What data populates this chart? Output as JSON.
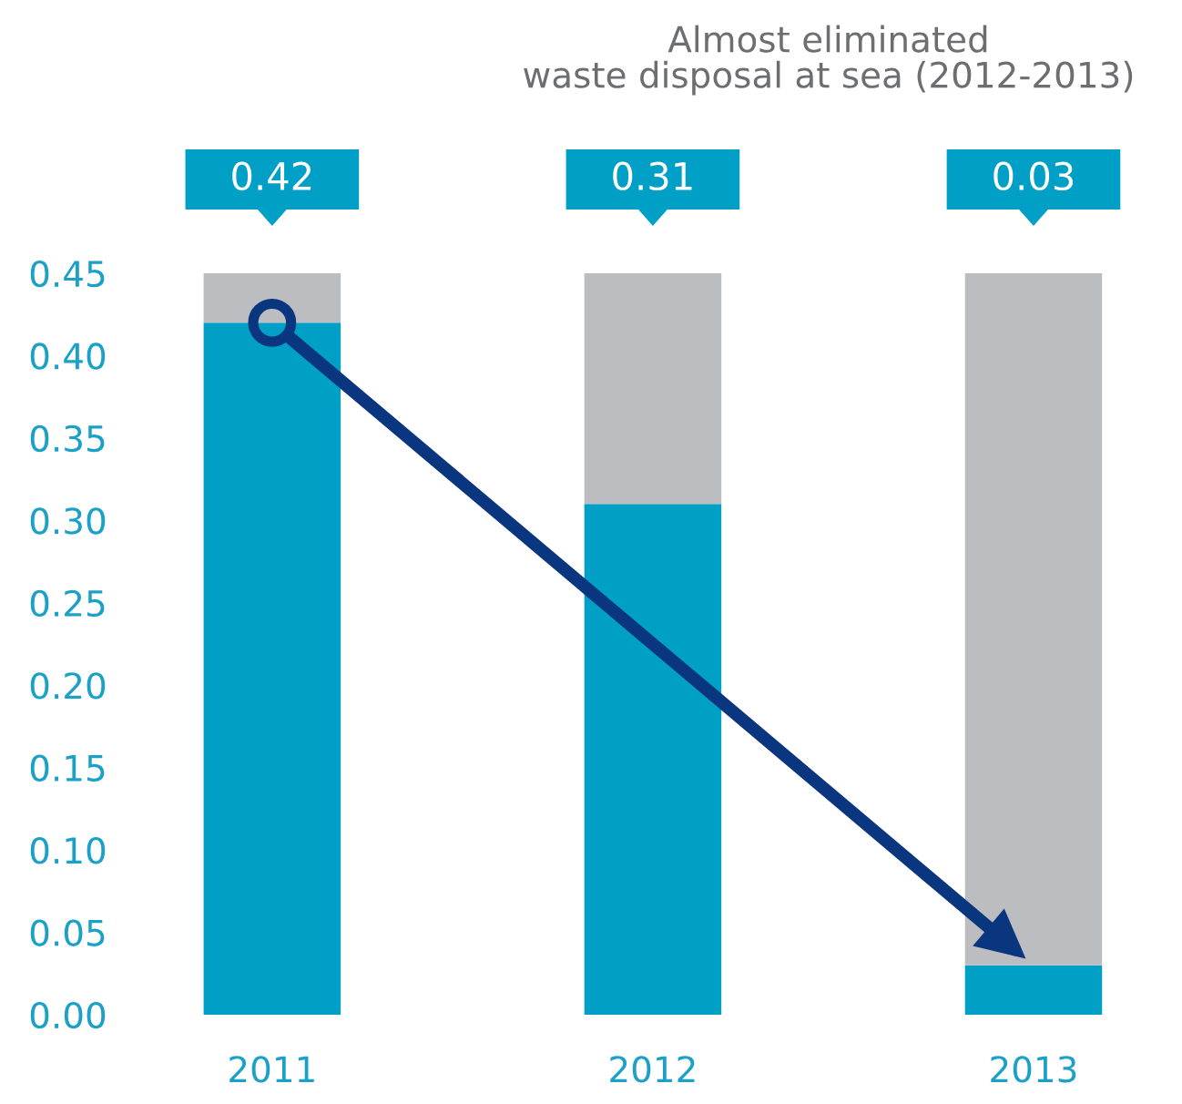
{
  "chart_data": {
    "type": "bar",
    "title": "Almost eliminated\nwaste disposal at sea (2012-2013)",
    "categories": [
      "2011",
      "2012",
      "2013"
    ],
    "stacked": true,
    "series": [
      {
        "color": "#00a0c6",
        "values": [
          0.42,
          0.31,
          0.03
        ],
        "value_labels": [
          "0.42",
          "0.31",
          "0.03"
        ]
      },
      {
        "color": "#bcbdc1",
        "values": [
          0.03,
          0.14,
          0.42
        ]
      }
    ],
    "ylim": [
      0,
      0.45
    ],
    "yticks": [
      {
        "value": 0,
        "label": "0.00"
      },
      {
        "value": 0.05,
        "label": "0.05"
      },
      {
        "value": 0.1,
        "label": "0.10"
      },
      {
        "value": 0.15,
        "label": "0.15"
      },
      {
        "value": 0.2,
        "label": "0.20"
      },
      {
        "value": 0.25,
        "label": "0.25"
      },
      {
        "value": 0.3,
        "label": "0.30"
      },
      {
        "value": 0.35,
        "label": "0.35"
      },
      {
        "value": 0.4,
        "label": "0.40"
      },
      {
        "value": 0.45,
        "label": "0.45"
      }
    ]
  }
}
